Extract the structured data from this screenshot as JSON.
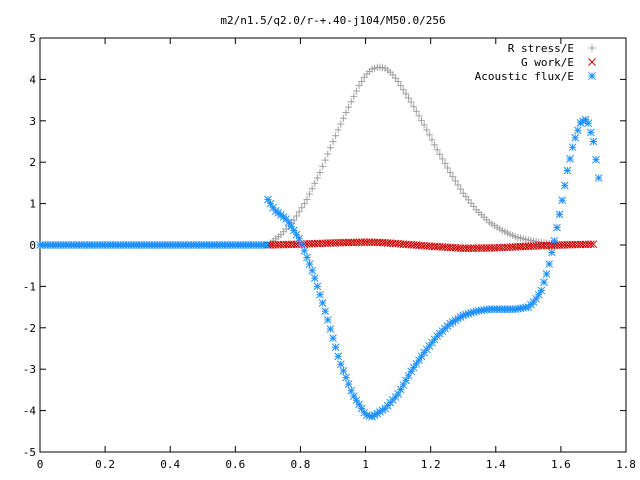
{
  "chart_data": {
    "type": "scatter",
    "title": "m2/n1.5/q2.0/r-+.40-j104/M50.0/256",
    "xlabel": "",
    "ylabel": "",
    "xlim": [
      0,
      1.8
    ],
    "ylim": [
      -5,
      5
    ],
    "xticks": [
      "0",
      "0.2",
      "0.4",
      "0.6",
      "0.8",
      "1",
      "1.2",
      "1.4",
      "1.6",
      "1.8"
    ],
    "yticks": [
      "-5",
      "-4",
      "-3",
      "-2",
      "-1",
      "0",
      "1",
      "2",
      "3",
      "4",
      "5"
    ],
    "grid": false,
    "legend_position": "top-right",
    "series": [
      {
        "name": "R stress/E",
        "marker": "plus",
        "color": "#a0a0a0",
        "x": [
          0.7,
          0.74,
          0.78,
          0.82,
          0.86,
          0.9,
          0.94,
          0.98,
          1.0,
          1.02,
          1.04,
          1.06,
          1.08,
          1.1,
          1.14,
          1.18,
          1.22,
          1.26,
          1.3,
          1.34,
          1.38,
          1.42,
          1.46,
          1.5,
          1.54,
          1.58
        ],
        "y": [
          0.0,
          0.25,
          0.6,
          1.1,
          1.75,
          2.5,
          3.2,
          3.85,
          4.1,
          4.25,
          4.3,
          4.27,
          4.15,
          3.95,
          3.45,
          2.9,
          2.3,
          1.75,
          1.25,
          0.85,
          0.55,
          0.35,
          0.2,
          0.12,
          0.06,
          0.03
        ]
      },
      {
        "name": "G work/E",
        "marker": "cross",
        "color": "#cc0000",
        "x": [
          0.7,
          0.8,
          0.9,
          1.0,
          1.05,
          1.1,
          1.2,
          1.3,
          1.4,
          1.5,
          1.6,
          1.7
        ],
        "y": [
          0.0,
          0.02,
          0.05,
          0.07,
          0.06,
          0.03,
          -0.03,
          -0.08,
          -0.07,
          -0.03,
          0.0,
          0.02
        ]
      },
      {
        "name": "Acoustic flux/E",
        "marker": "star",
        "color": "#1e90ff",
        "x": [
          0.0,
          0.1,
          0.2,
          0.3,
          0.4,
          0.5,
          0.6,
          0.7,
          0.72,
          0.76,
          0.8,
          0.84,
          0.88,
          0.92,
          0.96,
          1.0,
          1.02,
          1.06,
          1.1,
          1.14,
          1.18,
          1.22,
          1.26,
          1.3,
          1.34,
          1.38,
          1.42,
          1.46,
          1.5,
          1.52,
          1.54,
          1.56,
          1.58,
          1.6,
          1.62,
          1.64,
          1.66,
          1.68,
          1.7,
          1.72
        ],
        "y": [
          0.0,
          0.0,
          0.0,
          0.0,
          0.0,
          0.0,
          0.0,
          1.1,
          0.85,
          0.6,
          0.1,
          -0.7,
          -1.7,
          -2.8,
          -3.6,
          -4.1,
          -4.15,
          -3.95,
          -3.6,
          -3.05,
          -2.6,
          -2.2,
          -1.9,
          -1.7,
          -1.6,
          -1.55,
          -1.55,
          -1.55,
          -1.5,
          -1.35,
          -1.1,
          -0.6,
          0.1,
          0.9,
          1.8,
          2.5,
          2.95,
          3.05,
          2.5,
          1.4
        ]
      }
    ]
  }
}
